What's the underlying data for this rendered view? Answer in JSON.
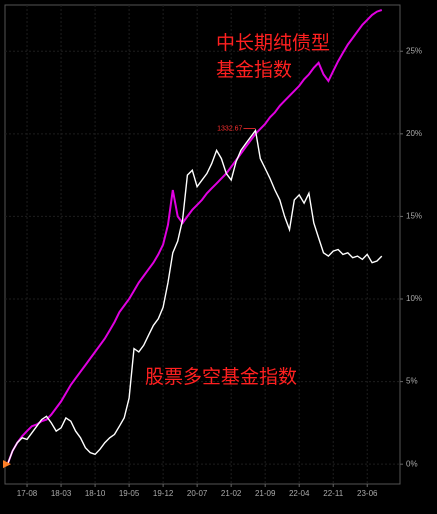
{
  "chart_data": {
    "type": "line",
    "x": [
      "17-04",
      "17-05",
      "17-06",
      "17-07",
      "17-08",
      "17-09",
      "17-10",
      "17-11",
      "17-12",
      "18-01",
      "18-02",
      "18-03",
      "18-04",
      "18-05",
      "18-06",
      "18-07",
      "18-08",
      "18-09",
      "18-10",
      "18-11",
      "18-12",
      "19-01",
      "19-02",
      "19-03",
      "19-04",
      "19-05",
      "19-06",
      "19-07",
      "19-08",
      "19-09",
      "19-10",
      "19-11",
      "19-12",
      "20-01",
      "20-02",
      "20-03",
      "20-04",
      "20-05",
      "20-06",
      "20-07",
      "20-08",
      "20-09",
      "20-10",
      "20-11",
      "20-12",
      "21-01",
      "21-02",
      "21-03",
      "21-04",
      "21-05",
      "21-06",
      "21-07",
      "21-08",
      "21-09",
      "21-10",
      "21-11",
      "21-12",
      "22-01",
      "22-02",
      "22-03",
      "22-04",
      "22-05",
      "22-06",
      "22-07",
      "22-08",
      "22-09",
      "22-10",
      "22-11",
      "22-12",
      "23-01",
      "23-02",
      "23-03",
      "23-04",
      "23-05",
      "23-06",
      "23-07",
      "23-08",
      "23-09"
    ],
    "xticks": [
      "17-08",
      "18-03",
      "18-10",
      "19-05",
      "19-12",
      "20-07",
      "21-02",
      "21-09",
      "22-04",
      "22-11",
      "23-06"
    ],
    "series": [
      {
        "name": "中长期纯债型基金指数",
        "color": "#e000e0",
        "label_color": "#ff2020",
        "values": [
          0,
          0.8,
          1.3,
          1.7,
          2.0,
          2.3,
          2.4,
          2.6,
          2.7,
          3.0,
          3.4,
          3.8,
          4.3,
          4.8,
          5.2,
          5.6,
          6.0,
          6.4,
          6.8,
          7.2,
          7.6,
          8.1,
          8.6,
          9.2,
          9.6,
          10.0,
          10.5,
          11.0,
          11.4,
          11.8,
          12.2,
          12.7,
          13.3,
          14.5,
          16.6,
          15.0,
          14.6,
          15.0,
          15.4,
          15.7,
          16.0,
          16.4,
          16.7,
          17.0,
          17.3,
          17.6,
          18.0,
          18.4,
          18.8,
          19.2,
          19.6,
          20.0,
          20.3,
          20.6,
          21.0,
          21.3,
          21.7,
          22.0,
          22.3,
          22.6,
          22.9,
          23.3,
          23.6,
          24.0,
          24.3,
          23.6,
          23.2,
          23.8,
          24.4,
          24.9,
          25.4,
          25.8,
          26.2,
          26.6,
          26.9,
          27.2,
          27.4,
          27.5
        ]
      },
      {
        "name": "股票多空基金指数",
        "color": "#ffffff",
        "label_color": "#ff2020",
        "values": [
          0,
          0.8,
          1.3,
          1.6,
          1.5,
          1.9,
          2.3,
          2.7,
          2.9,
          2.5,
          2.0,
          2.2,
          2.8,
          2.6,
          2.0,
          1.6,
          1.0,
          0.7,
          0.6,
          0.9,
          1.3,
          1.6,
          1.8,
          2.3,
          2.8,
          4.0,
          7.0,
          6.8,
          7.2,
          7.8,
          8.4,
          8.8,
          9.5,
          11.0,
          12.8,
          13.5,
          14.8,
          17.5,
          17.8,
          16.8,
          17.2,
          17.6,
          18.2,
          19.0,
          18.5,
          17.6,
          17.2,
          18.3,
          19.0,
          19.4,
          19.8,
          20.2,
          18.5,
          17.9,
          17.3,
          16.6,
          16.0,
          15.0,
          14.2,
          16.0,
          16.3,
          15.8,
          16.4,
          14.6,
          13.7,
          12.8,
          12.6,
          12.9,
          13.0,
          12.7,
          12.8,
          12.5,
          12.6,
          12.4,
          12.7,
          12.2,
          12.3,
          12.6
        ]
      }
    ],
    "annotation": "1332.67",
    "ylim": [
      -1.2,
      27.8
    ],
    "yticks": [
      {
        "value": 0,
        "label": "0%"
      },
      {
        "value": 5,
        "label": "5%"
      },
      {
        "value": 10,
        "label": "10%"
      },
      {
        "value": 15,
        "label": "15%"
      },
      {
        "value": 20,
        "label": "20%"
      },
      {
        "value": 25,
        "label": "25%"
      }
    ],
    "grid": true
  }
}
